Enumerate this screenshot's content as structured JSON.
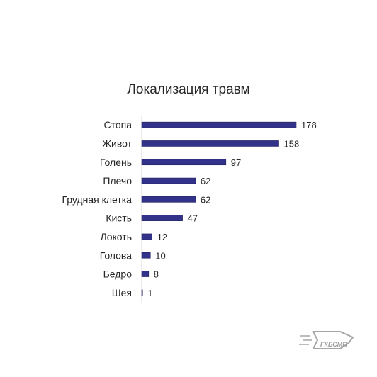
{
  "chart_data": {
    "type": "bar",
    "orientation": "horizontal",
    "title": "Локализация травм",
    "categories": [
      "Стопа",
      "Живот",
      "Голень",
      "Плечо",
      "Грудная клетка",
      "Кисть",
      "Локоть",
      "Голова",
      "Бедро",
      "Шея"
    ],
    "values": [
      178,
      158,
      97,
      62,
      62,
      47,
      12,
      10,
      8,
      1
    ],
    "xlim": [
      0,
      178
    ],
    "grid": false,
    "legend": "none",
    "bar_color": "#32328a",
    "data_labels": true
  },
  "logo": {
    "text": "ГКБСМП",
    "color": "#9a9a9a"
  }
}
